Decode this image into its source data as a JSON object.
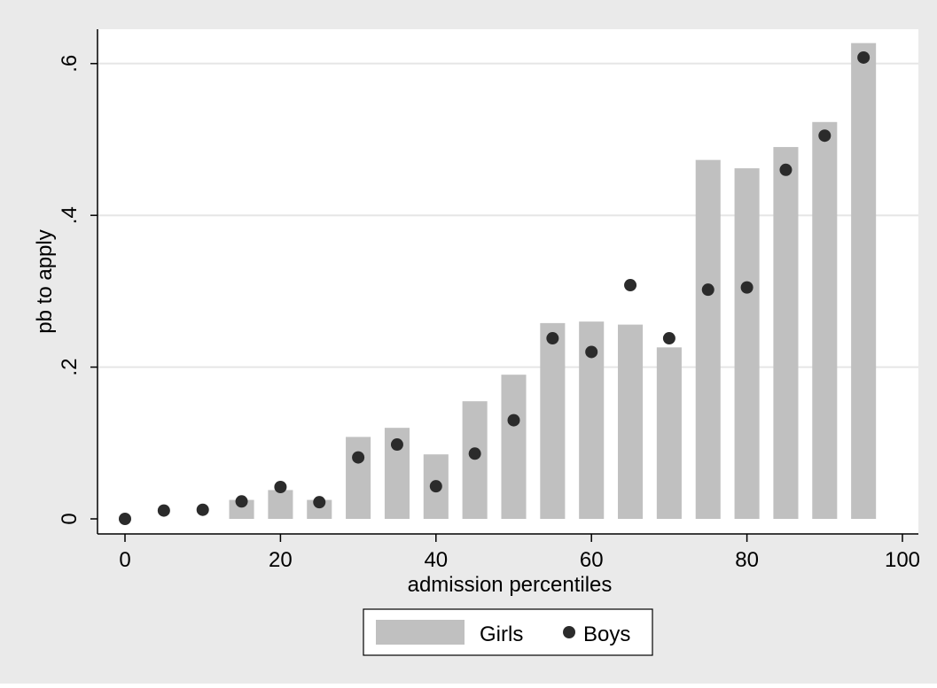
{
  "chart_data": {
    "type": "bar",
    "title": "",
    "xlabel": "admission percentiles",
    "ylabel": "pb to apply",
    "xlim": [
      -3,
      100
    ],
    "ylim": [
      -0.02,
      0.65
    ],
    "x_ticks": [
      {
        "value": 0,
        "label": "0"
      },
      {
        "value": 20,
        "label": "20"
      },
      {
        "value": 40,
        "label": "40"
      },
      {
        "value": 60,
        "label": "60"
      },
      {
        "value": 80,
        "label": "80"
      },
      {
        "value": 100,
        "label": "100"
      }
    ],
    "y_ticks": [
      {
        "value": 0,
        "label": "0"
      },
      {
        "value": 0.2,
        "label": ".2"
      },
      {
        "value": 0.4,
        "label": ".4"
      },
      {
        "value": 0.6,
        "label": ".6"
      }
    ],
    "grid": true,
    "legend_position": "bottom",
    "bar_width": 3.2,
    "series": [
      {
        "name": "Girls",
        "kind": "bar",
        "color": "#c0c0c0",
        "x": [
          0,
          5,
          10,
          15,
          20,
          25,
          30,
          35,
          40,
          45,
          50,
          55,
          60,
          65,
          70,
          75,
          80,
          85,
          90,
          95
        ],
        "values": [
          0,
          0,
          0,
          0.025,
          0.038,
          0.025,
          0.108,
          0.12,
          0.085,
          0.155,
          0.19,
          0.258,
          0.26,
          0.256,
          0.226,
          0.473,
          0.462,
          0.49,
          0.523,
          0.627
        ]
      },
      {
        "name": "Boys",
        "kind": "scatter",
        "color": "#2b2b2b",
        "x": [
          0,
          5,
          10,
          15,
          20,
          25,
          30,
          35,
          40,
          45,
          50,
          55,
          60,
          65,
          70,
          75,
          80,
          85,
          90,
          95
        ],
        "values": [
          0,
          0.011,
          0.012,
          0.023,
          0.042,
          0.022,
          0.081,
          0.098,
          0.043,
          0.086,
          0.13,
          0.238,
          0.22,
          0.308,
          0.238,
          0.302,
          0.305,
          0.46,
          0.505,
          0.608
        ]
      }
    ]
  },
  "colors": {
    "outer_background": "#eaeaea",
    "plot_background": "#ffffff",
    "gridline": "#e6e6e6",
    "axis": "#000000"
  }
}
